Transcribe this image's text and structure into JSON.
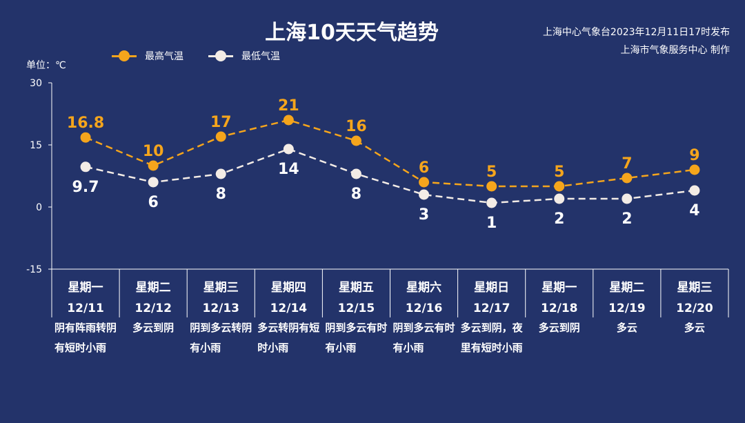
{
  "header": {
    "title": "上海10天天气趋势",
    "publisher_line1": "上海中心气象台2023年12月11日17时发布",
    "publisher_line2": "上海市气象服务中心 制作"
  },
  "unit_label": "单位：℃",
  "colors": {
    "background": "#23336a",
    "high": "#f5a51c",
    "low": "#f3ece6",
    "axis": "#ffffff"
  },
  "chart_data": {
    "type": "line",
    "ylabel": "单位：℃",
    "ylim": [
      -15,
      30
    ],
    "yticks": [
      30,
      15,
      0,
      -15
    ],
    "legend_position": "top-left",
    "weekdays": [
      "星期一",
      "星期二",
      "星期三",
      "星期四",
      "星期五",
      "星期六",
      "星期日",
      "星期一",
      "星期二",
      "星期三"
    ],
    "categories": [
      "12/11",
      "12/12",
      "12/13",
      "12/14",
      "12/15",
      "12/16",
      "12/17",
      "12/18",
      "12/19",
      "12/20"
    ],
    "series": [
      {
        "name": "最高气温",
        "values": [
          16.8,
          10,
          17,
          21,
          16,
          6,
          5,
          5,
          7,
          9
        ]
      },
      {
        "name": "最低气温",
        "values": [
          9.7,
          6,
          8,
          14,
          8,
          3,
          1,
          2,
          2,
          4
        ]
      }
    ],
    "descriptions": [
      "阴有阵雨转阴有短时小雨",
      "多云到阴",
      "阴到多云转阴有小雨",
      "多云转阴有短时小雨",
      "阴到多云有时有小雨",
      "阴到多云有时有小雨",
      "多云到阴，夜里有短时小雨",
      "多云到阴",
      "多云",
      "多云"
    ]
  }
}
